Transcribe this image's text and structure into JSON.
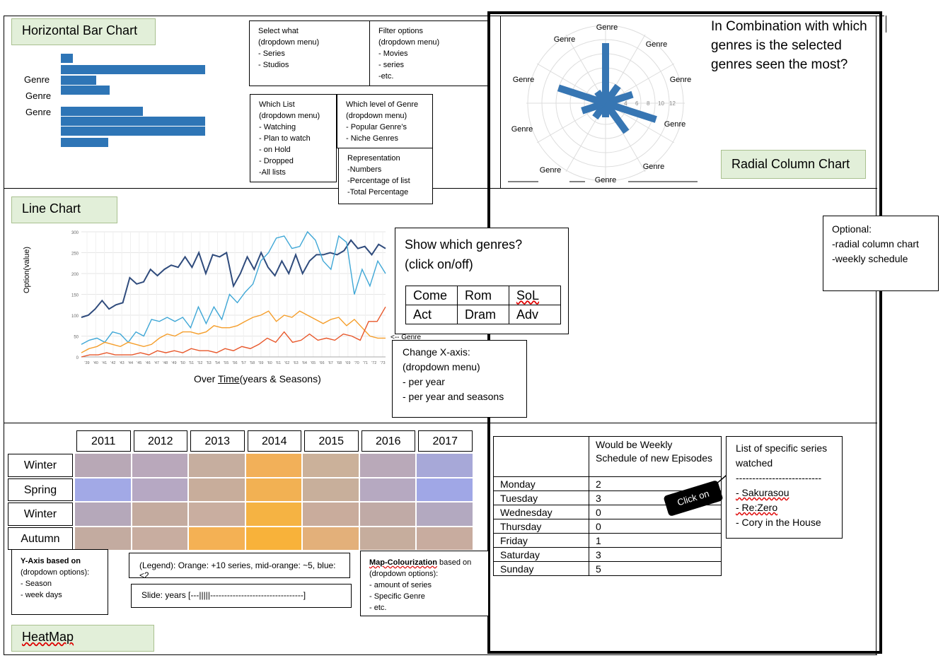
{
  "sections": {
    "bar_title": "Horizontal Bar Chart",
    "radial_title": "Radial Column Chart",
    "line_title": "Line Chart",
    "heatmap_title": "HeatMap"
  },
  "bar_chart": {
    "labels": [
      "Genre",
      "Genre",
      "Genre"
    ],
    "bars": [
      0.08,
      0.98,
      0.24,
      0.33,
      0.56,
      0.98,
      0.98,
      0.32
    ]
  },
  "select_what": {
    "title": "Select what",
    "lines": [
      "(dropdown menu)",
      "- Series",
      "- Studios"
    ]
  },
  "filter_options": {
    "title": "Filter options",
    "lines": [
      "(dropdown menu)",
      "- Movies",
      "- series",
      "-etc."
    ]
  },
  "which_list": {
    "title": "Which List",
    "lines": [
      "(dropdown menu)",
      "- Watching",
      "- Plan to watch",
      "- on Hold",
      "- Dropped",
      "-All lists"
    ]
  },
  "genre_level": {
    "title": "Which level of Genre",
    "lines": [
      "(dropdown menu)",
      "- Popular Genre’s",
      "- Niche Genres"
    ]
  },
  "representation": {
    "title": "Representation",
    "lines": [
      "-Numbers",
      "-Percentage of list",
      "-Total Percentage"
    ]
  },
  "radial": {
    "question": "In Combination with which genres is the selected genres seen the most?",
    "genre_labels": [
      "Genre",
      "Genre",
      "Genre",
      "Genre",
      "Genre",
      "Genre",
      "Genre",
      "Genre",
      "Genre",
      "Genre",
      "Genre"
    ],
    "tick_labels": [
      "4",
      "6",
      "8",
      "10",
      "12"
    ],
    "lengths": [
      85,
      30,
      40,
      75,
      50,
      20,
      25,
      35,
      70,
      20
    ]
  },
  "optional": {
    "title": "Optional:",
    "lines": [
      "-radial column chart",
      "-weekly schedule"
    ]
  },
  "line_chart": {
    "ylabel": "Option(value)",
    "xlabel_prefix": "Over ",
    "xlabel_time": "Time",
    "xlabel_suffix": "(years & Seasons)",
    "y_ticks": [
      "300",
      "250",
      "200",
      "150",
      "100",
      "50",
      "0"
    ],
    "x_ticks": [
      "'39",
      "'40",
      "'41",
      "'42",
      "'43",
      "'44",
      "'45",
      "'46",
      "'47",
      "'48",
      "'49",
      "'50",
      "'51",
      "'52",
      "'53",
      "'54",
      "'55",
      "'56",
      "'57",
      "'58",
      "'59",
      "'60",
      "'61",
      "'62",
      "'63",
      "'64",
      "'65",
      "'66",
      "'67",
      "'68",
      "'69",
      "'70",
      "'71",
      "'72",
      "'73"
    ],
    "genre_note": "<-- Genre",
    "series": [
      {
        "color": "#2f4b7c",
        "values": [
          95,
          100,
          115,
          135,
          115,
          125,
          130,
          190,
          175,
          180,
          210,
          195,
          210,
          220,
          215,
          240,
          215,
          250,
          200,
          245,
          240,
          250,
          170,
          200,
          240,
          210,
          250,
          215,
          195,
          230,
          200,
          245,
          200,
          230,
          245,
          245,
          250,
          245,
          255,
          280,
          260,
          265,
          245,
          270,
          260
        ]
      },
      {
        "color": "#3fa7d6",
        "values": [
          30,
          40,
          45,
          35,
          60,
          55,
          35,
          60,
          50,
          90,
          85,
          95,
          85,
          95,
          70,
          120,
          80,
          120,
          90,
          150,
          130,
          155,
          175,
          230,
          250,
          285,
          290,
          260,
          265,
          300,
          280,
          230,
          210,
          290,
          275,
          150,
          210,
          170,
          230,
          200
        ]
      },
      {
        "color": "#f59e2b",
        "values": [
          10,
          20,
          25,
          35,
          30,
          25,
          35,
          30,
          25,
          30,
          45,
          55,
          50,
          60,
          60,
          55,
          60,
          75,
          70,
          70,
          75,
          85,
          95,
          100,
          110,
          85,
          100,
          95,
          110,
          100,
          90,
          80,
          90,
          95,
          75,
          90,
          70,
          50,
          45,
          45
        ]
      },
      {
        "color": "#e8572a",
        "values": [
          0,
          5,
          5,
          10,
          5,
          5,
          5,
          10,
          5,
          15,
          10,
          15,
          10,
          20,
          15,
          15,
          10,
          20,
          15,
          25,
          20,
          30,
          45,
          35,
          60,
          35,
          40,
          55,
          40,
          45,
          40,
          55,
          50,
          40,
          85,
          85,
          120
        ]
      }
    ]
  },
  "show_genres": {
    "question": "Show which genres? (click on/off)",
    "question_line1": "Show which genres?",
    "question_line2": "(click on/off)",
    "cells": [
      [
        "Come",
        "Rom",
        "SoL"
      ],
      [
        "Act",
        "Dram",
        "Adv"
      ]
    ]
  },
  "change_x": {
    "title": "Change X-axis:",
    "lines": [
      "(dropdown menu)",
      "- per year",
      "- per year and seasons"
    ]
  },
  "heatmap": {
    "years": [
      "2011",
      "2012",
      "2013",
      "2014",
      "2015",
      "2016",
      "2017"
    ],
    "seasons": [
      "Winter",
      "Spring",
      "Winter",
      "Autumn"
    ],
    "colors": [
      [
        "#b8a8b6",
        "#b9a8bb",
        "#c6ae9f",
        "#f2b059",
        "#cbb19a",
        "#b9a9b9",
        "#a7a8d8"
      ],
      [
        "#a2a9e6",
        "#b6a8c3",
        "#c8ad9b",
        "#f2b153",
        "#c8af9b",
        "#b6a9c1",
        "#a0a7e6"
      ],
      [
        "#b5a8ba",
        "#c4ab9f",
        "#c9aea0",
        "#f5b343",
        "#c9ac9c",
        "#c0aaa6",
        "#b3a9c0"
      ],
      [
        "#c3aba0",
        "#c8ada0",
        "#f4b154",
        "#f8b23a",
        "#e3b07a",
        "#c6ad9d",
        "#c8ac9f"
      ]
    ]
  },
  "y_axis_box": {
    "title": "Y-Axis based on",
    "lines": [
      "(dropdown options):",
      "- Season",
      "- week days"
    ]
  },
  "legend_box": "(Legend): Orange: +10 series, mid-orange: ~5, blue: <2",
  "slide_box": "Slide: years [---|||||---------------------------------]",
  "map_box": {
    "title_a": "Map-Colourization",
    "title_b": " based on",
    "lines": [
      "(dropdown options):",
      "- amount of series",
      "- Specific Genre",
      "- etc."
    ]
  },
  "weekly": {
    "header": "Would be Weekly Schedule of new Episodes",
    "rows": [
      [
        "Monday",
        "2"
      ],
      [
        "Tuesday",
        "3"
      ],
      [
        "Wednesday",
        "0"
      ],
      [
        "Thursday",
        "0"
      ],
      [
        "Friday",
        "1"
      ],
      [
        "Saturday",
        "3"
      ],
      [
        "Sunday",
        "5"
      ]
    ]
  },
  "click_on": "Click on",
  "series_list": {
    "title": "List of specific series watched",
    "divider": "--------------------------",
    "items": [
      "- Sakurasou",
      "- Re:Zero",
      "- Cory in the House"
    ]
  }
}
